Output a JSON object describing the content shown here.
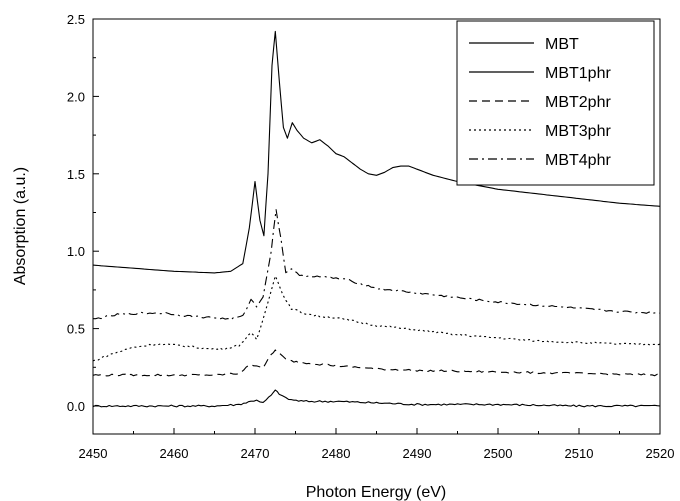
{
  "chart_data": {
    "type": "line",
    "title": "",
    "xlabel": "Photon Energy (eV)",
    "ylabel": "Absorption (a.u.)",
    "xlim": [
      2450,
      2520
    ],
    "ylim": [
      -0.2,
      2.5
    ],
    "xticks": [
      2450,
      2460,
      2470,
      2480,
      2490,
      2500,
      2510,
      2520
    ],
    "xtick_labels": [
      "2450",
      "2460",
      "2470",
      "2480",
      "2490",
      "2500",
      "2510",
      "2520"
    ],
    "yticks": [
      0.0,
      0.5,
      1.0,
      1.5,
      2.0,
      2.5
    ],
    "ytick_labels": [
      "0.0",
      "0.5",
      "1.0",
      "1.5",
      "2.0",
      "2.5"
    ],
    "grid": false,
    "legend_position": "top-right",
    "series": [
      {
        "name": "MBT",
        "dash": "solid",
        "x": [
          2450,
          2455,
          2460,
          2465,
          2467,
          2468.5,
          2469.3,
          2470,
          2470.6,
          2471.1,
          2471.6,
          2472.1,
          2472.5,
          2473,
          2473.5,
          2474,
          2474.6,
          2475.2,
          2476,
          2477,
          2478,
          2479,
          2480,
          2481,
          2482,
          2483,
          2484,
          2485,
          2486,
          2487,
          2488,
          2489,
          2490,
          2492,
          2495,
          2500,
          2505,
          2510,
          2515,
          2520
        ],
        "y": [
          0.91,
          0.89,
          0.87,
          0.86,
          0.87,
          0.92,
          1.15,
          1.45,
          1.2,
          1.1,
          1.5,
          2.2,
          2.42,
          2.1,
          1.8,
          1.73,
          1.83,
          1.78,
          1.73,
          1.7,
          1.72,
          1.68,
          1.63,
          1.61,
          1.57,
          1.53,
          1.5,
          1.49,
          1.51,
          1.54,
          1.55,
          1.55,
          1.53,
          1.49,
          1.45,
          1.4,
          1.37,
          1.34,
          1.31,
          1.29
        ]
      },
      {
        "name": "MBT1phr",
        "dash": "solid",
        "x": [
          2450,
          2455,
          2460,
          2465,
          2468,
          2469.5,
          2470.2,
          2471,
          2472,
          2472.5,
          2473,
          2473.8,
          2474.5,
          2476,
          2478,
          2480,
          2485,
          2490,
          2500,
          2510,
          2520
        ],
        "y": [
          0.0,
          0.0,
          0.0,
          0.0,
          0.01,
          0.03,
          0.04,
          0.02,
          0.07,
          0.1,
          0.08,
          0.05,
          0.04,
          0.03,
          0.03,
          0.03,
          0.02,
          0.01,
          0.01,
          0.0,
          0.0
        ]
      },
      {
        "name": "MBT2phr",
        "dash": "dash",
        "x": [
          2450,
          2455,
          2460,
          2465,
          2468,
          2469.5,
          2470.2,
          2471,
          2472,
          2472.5,
          2473,
          2473.8,
          2474.5,
          2476,
          2478,
          2480,
          2485,
          2490,
          2500,
          2510,
          2520
        ],
        "y": [
          0.2,
          0.2,
          0.2,
          0.2,
          0.21,
          0.27,
          0.26,
          0.25,
          0.33,
          0.36,
          0.34,
          0.3,
          0.29,
          0.28,
          0.27,
          0.26,
          0.24,
          0.23,
          0.22,
          0.21,
          0.2
        ]
      },
      {
        "name": "MBT3phr",
        "dash": "dot",
        "x": [
          2450,
          2452,
          2455,
          2458,
          2461,
          2464,
          2466,
          2468,
          2469.5,
          2470.2,
          2471,
          2472,
          2472.5,
          2473,
          2473.8,
          2474.5,
          2476,
          2478,
          2480,
          2482,
          2485,
          2490,
          2495,
          2500,
          2505,
          2510,
          2515,
          2520
        ],
        "y": [
          0.29,
          0.33,
          0.38,
          0.4,
          0.39,
          0.37,
          0.37,
          0.39,
          0.47,
          0.43,
          0.56,
          0.75,
          0.84,
          0.78,
          0.68,
          0.63,
          0.6,
          0.58,
          0.57,
          0.55,
          0.52,
          0.49,
          0.46,
          0.44,
          0.42,
          0.41,
          0.4,
          0.4
        ]
      },
      {
        "name": "MBT4phr",
        "dash": "dashdot",
        "x": [
          2450,
          2453,
          2456,
          2459,
          2462,
          2465,
          2467,
          2468.5,
          2469.5,
          2470.2,
          2471,
          2472,
          2472.6,
          2473.2,
          2473.8,
          2474.5,
          2475.5,
          2477,
          2479,
          2481,
          2483,
          2485,
          2490,
          2495,
          2500,
          2505,
          2510,
          2515,
          2520
        ],
        "y": [
          0.56,
          0.59,
          0.6,
          0.6,
          0.58,
          0.57,
          0.56,
          0.58,
          0.69,
          0.64,
          0.71,
          1.0,
          1.27,
          1.08,
          0.86,
          0.89,
          0.84,
          0.84,
          0.83,
          0.82,
          0.79,
          0.76,
          0.73,
          0.7,
          0.67,
          0.65,
          0.63,
          0.61,
          0.6
        ]
      }
    ]
  }
}
